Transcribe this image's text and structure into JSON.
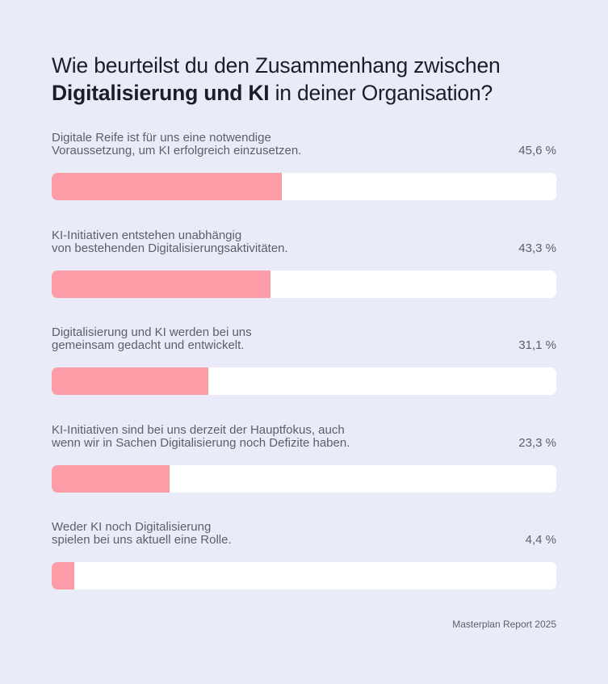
{
  "chart_data": {
    "type": "bar",
    "orientation": "horizontal",
    "title_parts": {
      "pre": "Wie beurteilst du den Zusammenhang zwischen ",
      "bold": "Digitalisierung und KI",
      "post": " in deiner Organisation?"
    },
    "categories": [
      "Digitale Reife ist für uns eine notwendige\nVoraussetzung, um KI erfolgreich einzusetzen.",
      "KI-Initiativen entstehen unabhängig\nvon bestehenden Digitalisierungsaktivitäten.",
      "Digitalisierung und KI werden bei uns\ngemeinsam gedacht und entwickelt.",
      "KI-Initiativen sind bei uns derzeit der Hauptfokus, auch\nwenn wir in Sachen Digitalisierung noch Defizite haben.",
      "Weder KI noch Digitalisierung\nspielen bei uns aktuell eine Rolle."
    ],
    "values": [
      45.6,
      43.3,
      31.1,
      23.3,
      4.4
    ],
    "value_labels": [
      "45,6 %",
      "43,3 %",
      "31,1 %",
      "23,3 %",
      "4,4 %"
    ],
    "xlim": [
      0,
      100
    ],
    "source": "Masterplan Report 2025"
  },
  "colors": {
    "background": "#e9ecf8",
    "bar_fill": "#fb9ca6",
    "track": "#ffffff",
    "text": "#1b1d2b",
    "muted_text": "#5b5e70"
  }
}
